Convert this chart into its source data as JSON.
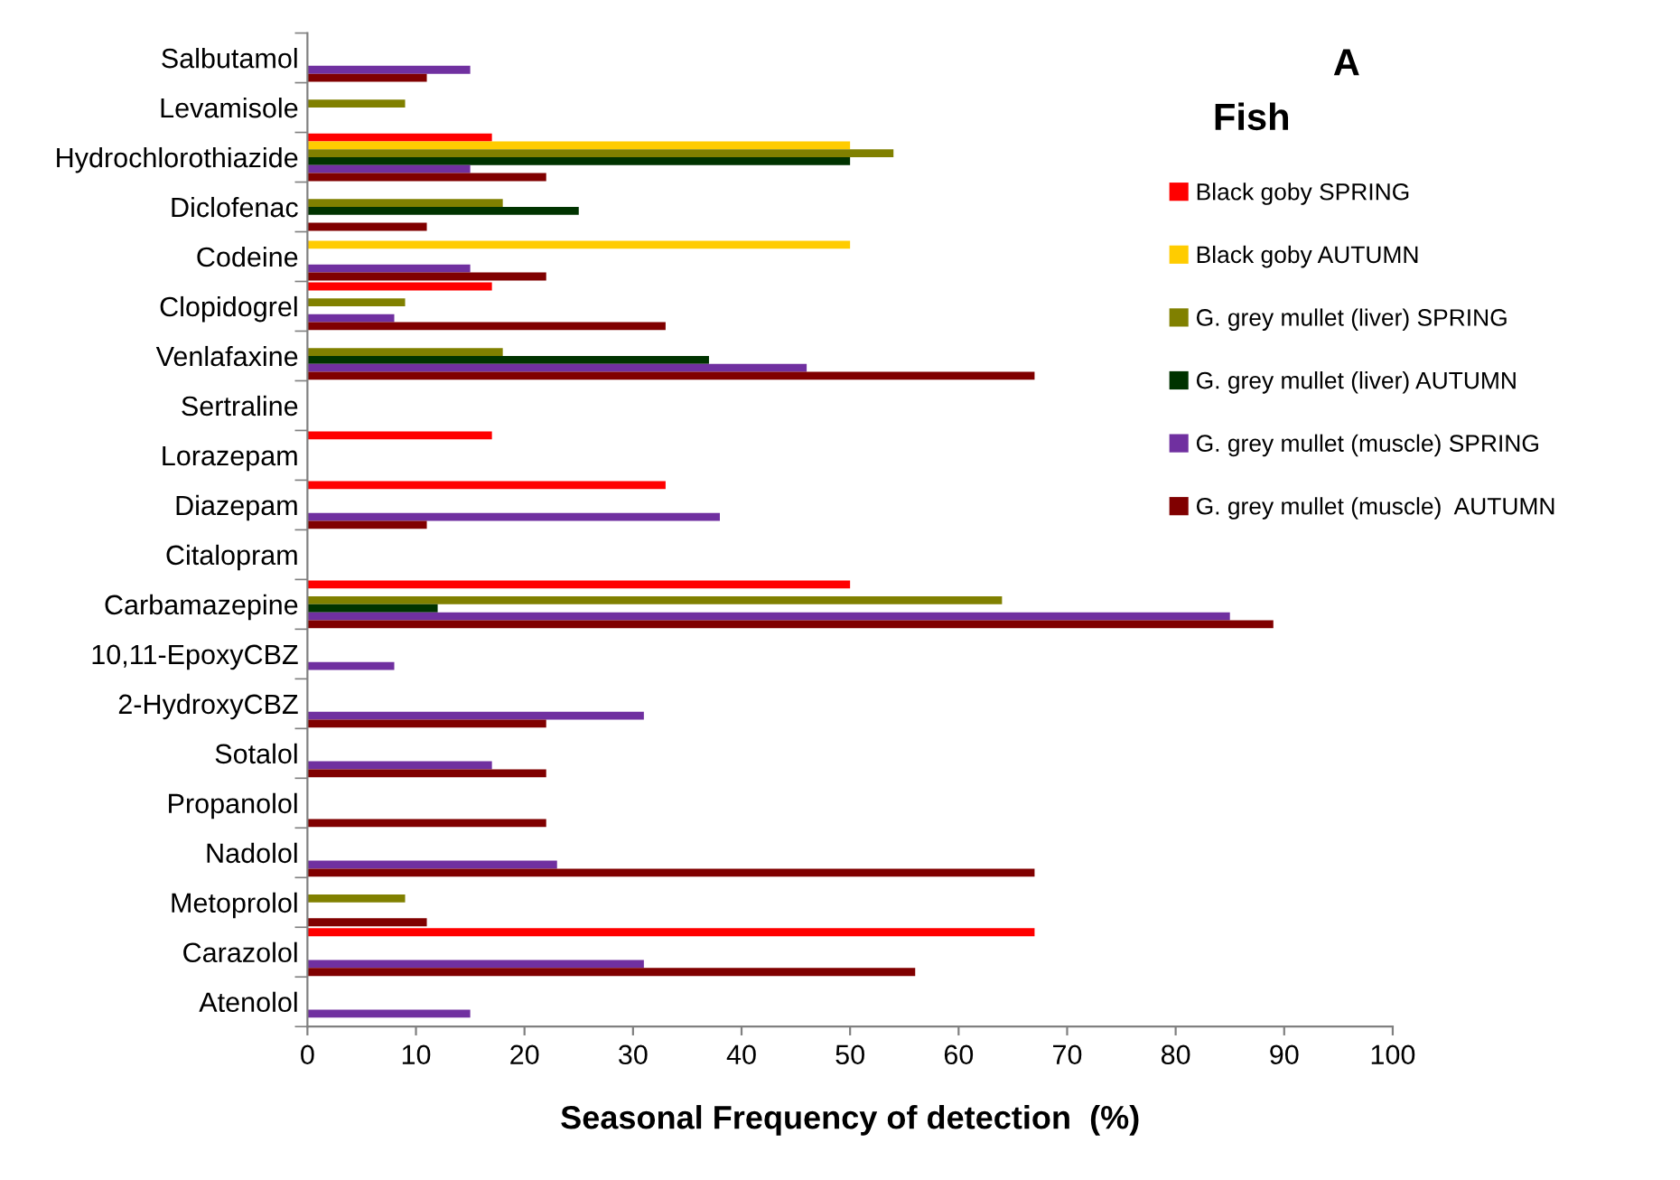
{
  "chart_data": {
    "type": "bar",
    "orientation": "horizontal",
    "title": "A",
    "subtitle": "Fish",
    "xlabel": "Seasonal Frequency of detection  (%)",
    "categories": [
      "Salbutamol",
      "Levamisole",
      "Hydrochlorothiazide",
      "Diclofenac",
      "Codeine",
      "Clopidogrel",
      "Venlafaxine",
      "Sertraline",
      "Lorazepam",
      "Diazepam",
      "Citalopram",
      "Carbamazepine",
      "10,11-EpoxyCBZ",
      "2-HydroxyCBZ",
      "Sotalol",
      "Propanolol",
      "Nadolol",
      "Metoprolol",
      "Carazolol",
      "Atenolol"
    ],
    "series": [
      {
        "name": "Black goby SPRING",
        "color": "#ff0000",
        "values": [
          null,
          null,
          17,
          null,
          null,
          17,
          null,
          null,
          17,
          33,
          null,
          50,
          null,
          null,
          null,
          null,
          null,
          null,
          67,
          null
        ]
      },
      {
        "name": "Black goby AUTUMN",
        "color": "#ffcc00",
        "values": [
          null,
          null,
          50,
          null,
          50,
          null,
          null,
          null,
          null,
          null,
          null,
          null,
          null,
          null,
          null,
          null,
          null,
          null,
          null,
          null
        ]
      },
      {
        "name": "G. grey mullet (liver) SPRING",
        "color": "#808000",
        "values": [
          null,
          9,
          54,
          18,
          null,
          9,
          18,
          null,
          null,
          null,
          null,
          64,
          null,
          null,
          null,
          null,
          null,
          9,
          null,
          null
        ]
      },
      {
        "name": "G. grey mullet (liver) AUTUMN",
        "color": "#003300",
        "values": [
          null,
          null,
          50,
          25,
          null,
          null,
          37,
          null,
          null,
          null,
          null,
          12,
          null,
          null,
          null,
          null,
          null,
          null,
          null,
          null
        ]
      },
      {
        "name": "G. grey mullet (muscle) SPRING",
        "color": "#7030a0",
        "values": [
          15,
          null,
          15,
          null,
          15,
          8,
          46,
          null,
          null,
          38,
          null,
          85,
          8,
          31,
          17,
          null,
          23,
          null,
          31,
          15
        ]
      },
      {
        "name": "G. grey mullet (muscle)  AUTUMN",
        "color": "#800000",
        "values": [
          11,
          null,
          22,
          11,
          22,
          33,
          67,
          null,
          null,
          11,
          null,
          89,
          null,
          22,
          22,
          22,
          67,
          11,
          56,
          null
        ]
      }
    ],
    "xlim": [
      0,
      100
    ],
    "xticks": [
      0,
      10,
      20,
      30,
      40,
      50,
      60,
      70,
      80,
      90,
      100
    ],
    "grid": false,
    "legend": "right"
  }
}
